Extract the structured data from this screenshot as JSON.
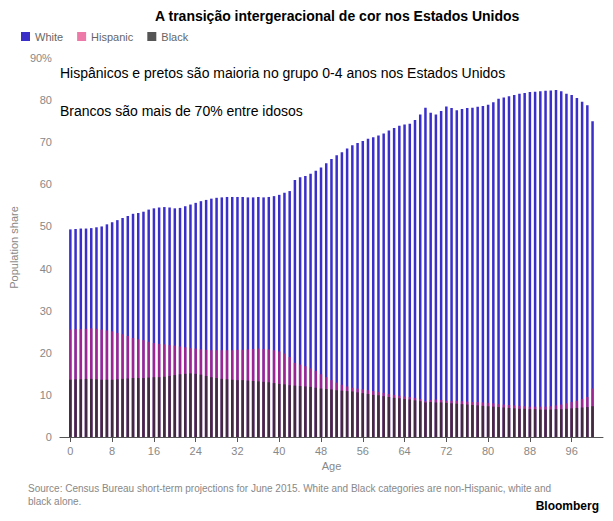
{
  "chart_data": {
    "type": "bar",
    "title": "A transição intergeracional de cor nos Estados Unidos",
    "annotations": [
      "Hispânicos e pretos são maioria no grupo 0-4 anos nos Estados Unidos",
      "Brancos são mais de 70% entre idosos"
    ],
    "source": "Source: Census Bureau short-term projections for June 2015. White and Black categories are non-Hispanic, white and black alone.",
    "credit": "Bloomberg",
    "x_label": "Age",
    "y_label": "Population share",
    "x": [
      0,
      1,
      2,
      3,
      4,
      5,
      6,
      7,
      8,
      9,
      10,
      11,
      12,
      13,
      14,
      15,
      16,
      17,
      18,
      19,
      20,
      21,
      22,
      23,
      24,
      25,
      26,
      27,
      28,
      29,
      30,
      31,
      32,
      33,
      34,
      35,
      36,
      37,
      38,
      39,
      40,
      41,
      42,
      43,
      44,
      45,
      46,
      47,
      48,
      49,
      50,
      51,
      52,
      53,
      54,
      55,
      56,
      57,
      58,
      59,
      60,
      61,
      62,
      63,
      64,
      65,
      66,
      67,
      68,
      69,
      70,
      71,
      72,
      73,
      74,
      75,
      76,
      77,
      78,
      79,
      80,
      81,
      82,
      83,
      84,
      85,
      86,
      87,
      88,
      89,
      90,
      91,
      92,
      93,
      94,
      95,
      96,
      97,
      98,
      99,
      100
    ],
    "series": [
      {
        "name": "White",
        "color": "#3b2fc9",
        "values": [
          49.3,
          49.4,
          49.5,
          49.5,
          49.6,
          49.8,
          50.0,
          50.5,
          51,
          51.5,
          52,
          52.5,
          53,
          53.2,
          53.5,
          54,
          54.3,
          54.5,
          54.6,
          54.5,
          54.3,
          54.4,
          54.8,
          55.2,
          55.6,
          56,
          56.3,
          56.6,
          56.8,
          56.9,
          57,
          57,
          57,
          57,
          56.9,
          56.9,
          57,
          56.9,
          57,
          57.2,
          57.5,
          58,
          58.4,
          61,
          61.7,
          62,
          62.5,
          63.2,
          64,
          65,
          66,
          66.9,
          67.6,
          68.5,
          69.3,
          69.8,
          70.3,
          70.8,
          71.2,
          71.6,
          72.1,
          72.8,
          73.4,
          73.9,
          74.2,
          74.4,
          75.3,
          76.6,
          78.2,
          77,
          76.6,
          77.4,
          78.5,
          78.1,
          77.6,
          77.9,
          78.1,
          78.2,
          78.4,
          78.6,
          78.9,
          79.5,
          80.3,
          80.6,
          80.9,
          81.2,
          81.5,
          81.7,
          81.9,
          82,
          82.1,
          82.2,
          82.3,
          82.4,
          82.1,
          81.5,
          81.2,
          80.5,
          79.6,
          78.8,
          75
        ]
      },
      {
        "name": "Hispanic",
        "color": "#e0206e",
        "values": [
          25.5,
          25.6,
          25.6,
          25.7,
          25.8,
          25.7,
          25.5,
          25.3,
          25.1,
          24.7,
          24.4,
          24,
          23.5,
          23.2,
          23,
          22.6,
          22.3,
          22.1,
          22,
          21.8,
          21.7,
          21.5,
          21.3,
          21.1,
          21,
          20.8,
          20.7,
          20.6,
          20.6,
          20.6,
          20.6,
          20.6,
          20.7,
          20.7,
          20.8,
          20.9,
          21,
          20.9,
          20.8,
          20.6,
          20.3,
          19.8,
          19,
          17.6,
          17.2,
          16.8,
          16.3,
          15.7,
          14.9,
          14.2,
          13.5,
          12.9,
          12.4,
          12,
          11.7,
          11.5,
          11.3,
          11.1,
          10.9,
          10.7,
          10.5,
          10.2,
          10,
          9.8,
          9.6,
          9.5,
          9.3,
          9,
          8.5,
          8.8,
          8.9,
          8.8,
          8.6,
          8.6,
          8.6,
          8.5,
          8.4,
          8.3,
          8.3,
          8.2,
          8.1,
          8,
          7.8,
          7.7,
          7.6,
          7.5,
          7.4,
          7.3,
          7.2,
          7.2,
          7.2,
          7.2,
          7.3,
          7.5,
          7.7,
          8,
          8.3,
          8.6,
          9,
          9.5,
          11.5
        ]
      },
      {
        "name": "Black",
        "color": "#2a2a2a",
        "values": [
          13.6,
          13.7,
          13.7,
          13.8,
          13.8,
          13.7,
          13.6,
          13.6,
          13.6,
          13.7,
          13.8,
          13.9,
          14,
          14,
          14,
          14.1,
          14.2,
          14.2,
          14.3,
          14.5,
          14.7,
          14.9,
          15,
          15.1,
          15,
          14.8,
          14.5,
          14.2,
          14,
          13.8,
          13.7,
          13.6,
          13.5,
          13.5,
          13.4,
          13.3,
          13.2,
          13.1,
          13,
          12.8,
          12.6,
          12.5,
          12.3,
          12.2,
          12.1,
          12,
          11.9,
          11.7,
          11.5,
          11.4,
          11.3,
          11.1,
          11,
          10.9,
          10.8,
          10.6,
          10.4,
          10.2,
          10,
          9.9,
          9.7,
          9.5,
          9.3,
          9.2,
          9,
          8.9,
          8.7,
          8.5,
          8.2,
          8.3,
          8.2,
          8.2,
          8.1,
          8,
          7.9,
          7.8,
          7.7,
          7.6,
          7.5,
          7.4,
          7.3,
          7.2,
          7.1,
          7,
          6.9,
          6.8,
          6.7,
          6.7,
          6.6,
          6.6,
          6.5,
          6.5,
          6.5,
          6.6,
          6.6,
          6.7,
          6.8,
          6.9,
          7,
          7.1,
          7.3
        ]
      }
    ],
    "xlim": [
      -2,
      102
    ],
    "xticks": [
      0,
      8,
      16,
      24,
      32,
      40,
      48,
      56,
      64,
      72,
      80,
      88,
      96
    ],
    "ylim": [
      0,
      90
    ],
    "yticks": [
      0,
      10,
      20,
      30,
      40,
      50,
      60,
      70,
      80,
      {
        "value": 90,
        "label": "90%"
      }
    ],
    "grid": false,
    "legend": "top-left"
  }
}
